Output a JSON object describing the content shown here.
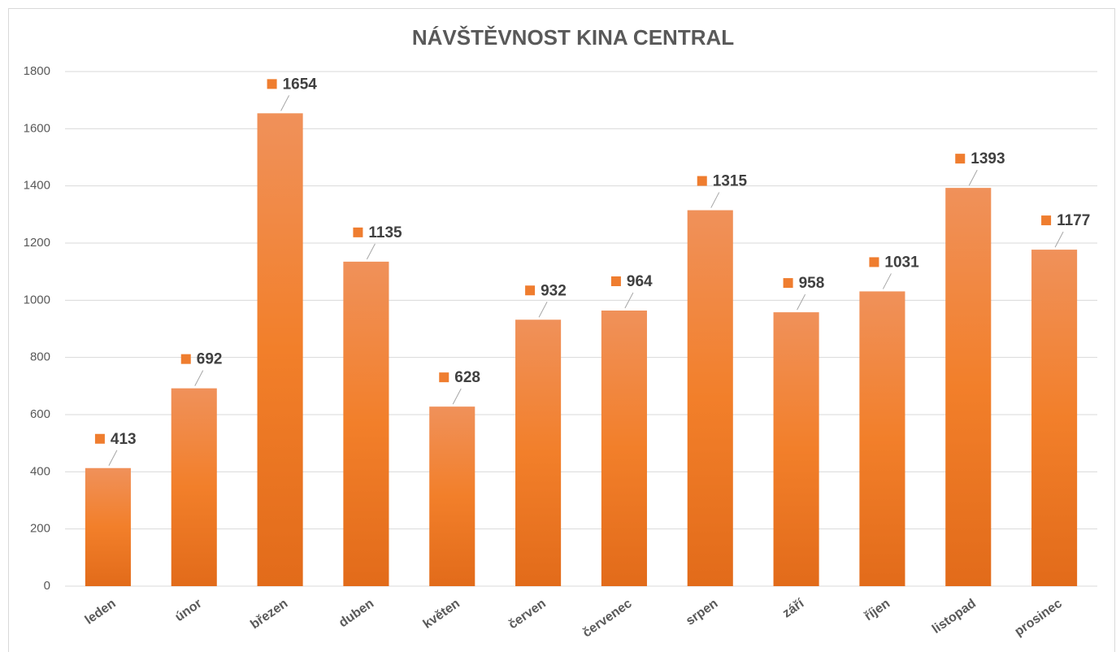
{
  "chart_data": {
    "type": "bar",
    "title": "NÁVŠTĚVNOST  KINA CENTRAL",
    "categories": [
      "leden",
      "únor",
      "březen",
      "duben",
      "květen",
      "červen",
      "červenec",
      "srpen",
      "září",
      "říjen",
      "listopad",
      "prosinec"
    ],
    "values": [
      413,
      692,
      1654,
      1135,
      628,
      932,
      964,
      1315,
      958,
      1031,
      1393,
      1177
    ],
    "color": "#ef7d2f",
    "ylim": [
      0,
      1800
    ],
    "yticks": [
      0,
      200,
      400,
      600,
      800,
      1000,
      1200,
      1400,
      1600,
      1800
    ],
    "grid": true
  }
}
